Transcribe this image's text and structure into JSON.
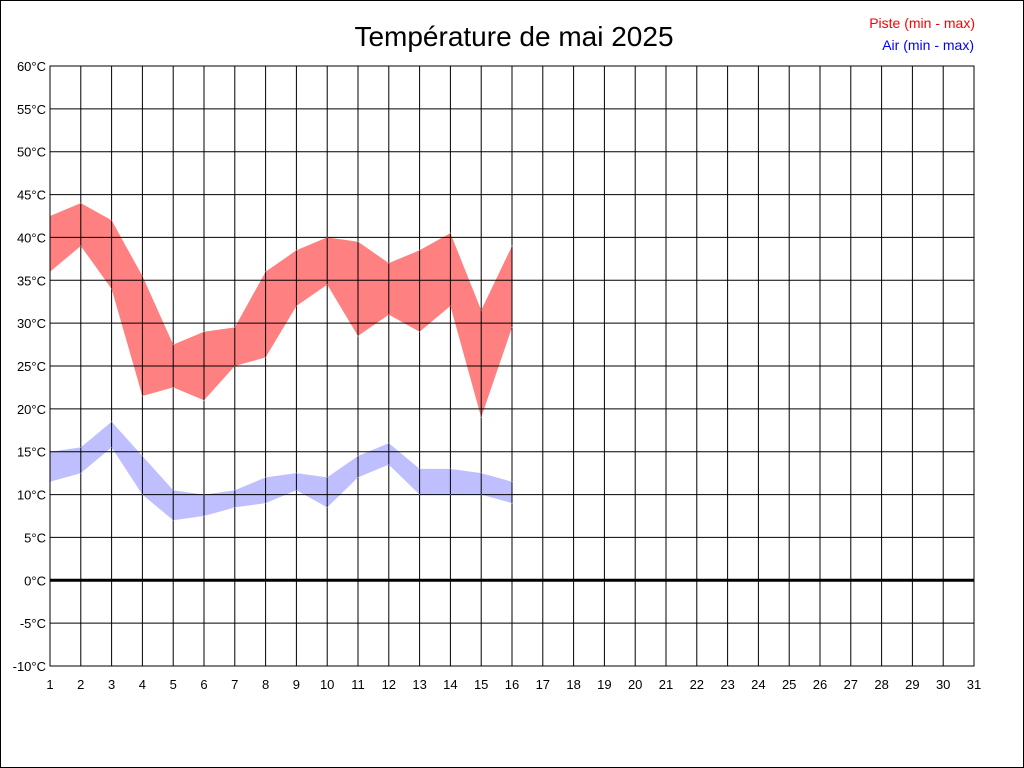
{
  "chart_data": {
    "type": "area",
    "title": "Température de mai 2025",
    "xlabel": "",
    "ylabel": "",
    "x_ticks": [
      "1",
      "2",
      "3",
      "4",
      "5",
      "6",
      "7",
      "8",
      "9",
      "10",
      "11",
      "12",
      "13",
      "14",
      "15",
      "16",
      "17",
      "18",
      "19",
      "20",
      "21",
      "22",
      "23",
      "24",
      "25",
      "26",
      "27",
      "28",
      "29",
      "30",
      "31"
    ],
    "xlim": [
      1,
      31
    ],
    "ylim": [
      -10,
      60
    ],
    "y_ticks": [
      -10,
      -5,
      0,
      5,
      10,
      15,
      20,
      25,
      30,
      35,
      40,
      45,
      50,
      55,
      60
    ],
    "y_tick_labels": [
      "-10°C",
      "-5°C",
      "0°C",
      "5°C",
      "10°C",
      "15°C",
      "20°C",
      "25°C",
      "30°C",
      "35°C",
      "40°C",
      "45°C",
      "50°C",
      "55°C",
      "60°C"
    ],
    "grid": true,
    "legend_position": "top-right",
    "series": [
      {
        "name": "Piste (min - max)",
        "color": "#ff0000",
        "fill": "#ff8080",
        "x": [
          1,
          2,
          3,
          4,
          5,
          6,
          7,
          8,
          9,
          10,
          11,
          12,
          13,
          14,
          15,
          16
        ],
        "min": [
          36,
          39,
          34,
          21.5,
          22.5,
          21,
          25,
          26,
          32,
          34.5,
          28.5,
          31,
          29,
          32,
          19,
          29.5
        ],
        "max": [
          42.5,
          44,
          42,
          35.5,
          27.5,
          29,
          29.5,
          36,
          38.5,
          40,
          39.5,
          37,
          38.5,
          40.5,
          31.5,
          39
        ]
      },
      {
        "name": "Air (min - max)",
        "color": "#0000ff",
        "fill": "#8080ff",
        "x": [
          1,
          2,
          3,
          4,
          5,
          6,
          7,
          8,
          9,
          10,
          11,
          12,
          13,
          14,
          15,
          16
        ],
        "min": [
          11.5,
          12.5,
          15.5,
          10,
          7,
          7.5,
          8.5,
          9,
          10.5,
          8.5,
          12,
          13.5,
          10,
          10,
          10,
          9
        ],
        "max": [
          15,
          15.5,
          18.5,
          14.5,
          10.5,
          10,
          10.5,
          12,
          12.5,
          12,
          14.5,
          16,
          13,
          13,
          12.5,
          11.5
        ]
      }
    ]
  }
}
